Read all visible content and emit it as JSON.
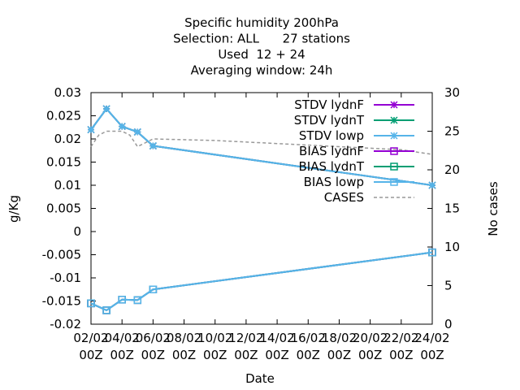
{
  "chart_data": {
    "type": "line",
    "title_lines": [
      "Specific humidity 200hPa",
      "Selection: ALL      27 stations",
      "Used  12 + 24",
      "Averaging window: 24h"
    ],
    "xlabel": "Date",
    "ylabel": "g/Kg",
    "y2label": "No cases",
    "x_ticks": [
      {
        "x": 2,
        "label": [
          "02/02",
          "00Z"
        ]
      },
      {
        "x": 4,
        "label": [
          "04/02",
          "00Z"
        ]
      },
      {
        "x": 6,
        "label": [
          "06/02",
          "00Z"
        ]
      },
      {
        "x": 8,
        "label": [
          "08/02",
          "00Z"
        ]
      },
      {
        "x": 10,
        "label": [
          "10/02",
          "00Z"
        ]
      },
      {
        "x": 12,
        "label": [
          "12/02",
          "00Z"
        ]
      },
      {
        "x": 14,
        "label": [
          "14/02",
          "00Z"
        ]
      },
      {
        "x": 16,
        "label": [
          "16/02",
          "00Z"
        ]
      },
      {
        "x": 18,
        "label": [
          "18/02",
          "00Z"
        ]
      },
      {
        "x": 20,
        "label": [
          "20/02",
          "00Z"
        ]
      },
      {
        "x": 22,
        "label": [
          "22/02",
          "00Z"
        ]
      },
      {
        "x": 24,
        "label": [
          "24/02",
          "00Z"
        ]
      }
    ],
    "xlim": [
      2,
      24
    ],
    "ylim": [
      -0.02,
      0.03
    ],
    "y_ticks": [
      0.03,
      0.025,
      0.02,
      0.015,
      0.01,
      0.005,
      0,
      -0.005,
      -0.01,
      -0.015,
      -0.02
    ],
    "y_tick_labels": [
      "0.03",
      "0.025",
      "0.02",
      "0.015",
      "0.01",
      "0.005",
      "0",
      "-0.005",
      "-0.01",
      "-0.015",
      "-0.02"
    ],
    "y2lim": [
      0,
      30
    ],
    "y2_ticks": [
      0,
      5,
      10,
      15,
      20,
      25,
      30
    ],
    "y2_tick_labels": [
      "0",
      "5",
      "10",
      "15",
      "20",
      "25",
      "30"
    ],
    "legend_placement": "top-right",
    "series": [
      {
        "name": "STDV lydnF",
        "color": "#9400d3",
        "marker": "star",
        "axis": "y1",
        "x": [
          2,
          3,
          4,
          5,
          6,
          24
        ],
        "values": [
          0.022,
          0.0265,
          0.0227,
          0.0215,
          0.0185,
          0.01
        ]
      },
      {
        "name": "STDV lydnT",
        "color": "#009e73",
        "marker": "star",
        "axis": "y1",
        "x": [
          2,
          3,
          4,
          5,
          6,
          24
        ],
        "values": [
          0.022,
          0.0265,
          0.0227,
          0.0215,
          0.0185,
          0.01
        ]
      },
      {
        "name": "STDV lowp",
        "color": "#56b4e9",
        "marker": "star",
        "axis": "y1",
        "x": [
          2,
          3,
          4,
          5,
          6,
          24
        ],
        "values": [
          0.022,
          0.0265,
          0.0227,
          0.0215,
          0.0185,
          0.01
        ]
      },
      {
        "name": "BIAS lydnF",
        "color": "#9400d3",
        "marker": "square",
        "axis": "y1",
        "x": [
          2,
          3,
          4,
          5,
          6,
          24
        ],
        "values": [
          -0.0155,
          -0.017,
          -0.0147,
          -0.0148,
          -0.0125,
          -0.0045
        ]
      },
      {
        "name": "BIAS lydnT",
        "color": "#009e73",
        "marker": "square",
        "axis": "y1",
        "x": [
          2,
          3,
          4,
          5,
          6,
          24
        ],
        "values": [
          -0.0155,
          -0.017,
          -0.0147,
          -0.0148,
          -0.0125,
          -0.0045
        ]
      },
      {
        "name": "BIAS lowp",
        "color": "#56b4e9",
        "marker": "square",
        "axis": "y1",
        "x": [
          2,
          3,
          4,
          5,
          6,
          24
        ],
        "values": [
          -0.0155,
          -0.017,
          -0.0147,
          -0.0148,
          -0.0125,
          -0.0045
        ]
      },
      {
        "name": "CASES",
        "color": "#999999",
        "marker": "none",
        "dashed": true,
        "axis": "y2",
        "x": [
          2,
          2.5,
          3,
          3.5,
          4,
          4.5,
          5,
          5.5,
          6,
          10,
          14,
          18,
          22,
          24
        ],
        "values": [
          23,
          24.5,
          25,
          25,
          25,
          24.5,
          23,
          23.5,
          24,
          23.8,
          23.4,
          23,
          22.6,
          22
        ]
      }
    ]
  }
}
